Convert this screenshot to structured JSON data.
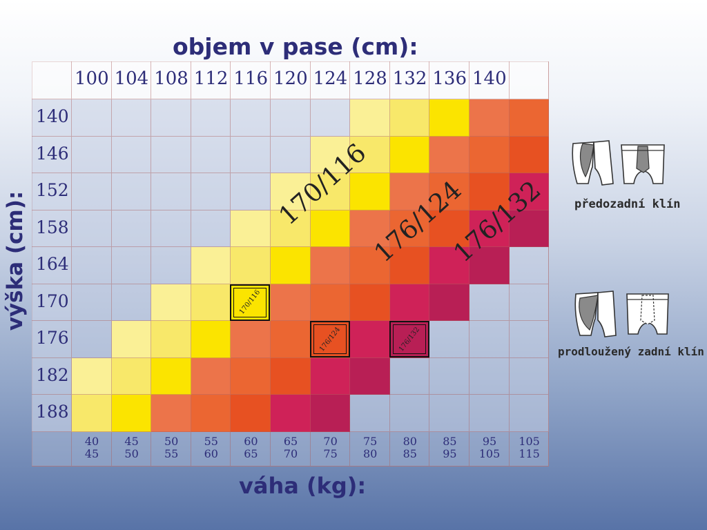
{
  "chart_data": {
    "type": "heatmap",
    "title_top": "objem v pase (cm):",
    "ylabel": "výška (cm):",
    "xlabel": "váha (kg):",
    "waist_cm": [
      "100",
      "104",
      "108",
      "112",
      "116",
      "120",
      "124",
      "128",
      "132",
      "136",
      "140"
    ],
    "height_cm": [
      "140",
      "146",
      "152",
      "158",
      "164",
      "170",
      "176",
      "182",
      "188"
    ],
    "weight_kg": [
      [
        "40",
        "45"
      ],
      [
        "45",
        "50"
      ],
      [
        "50",
        "55"
      ],
      [
        "55",
        "60"
      ],
      [
        "60",
        "65"
      ],
      [
        "65",
        "70"
      ],
      [
        "70",
        "75"
      ],
      [
        "75",
        "80"
      ],
      [
        "80",
        "85"
      ],
      [
        "85",
        "95"
      ],
      [
        "95",
        "105"
      ],
      [
        "105",
        "115"
      ]
    ],
    "color_scale": {
      "0": "#c6d0e4",
      "1": "#faf096",
      "2": "#f8e86a",
      "3": "#fbe400",
      "4": "#ec744a",
      "5": "#eb6632",
      "6": "#e75122",
      "7": "#cf2258",
      "8": "#b81f55"
    },
    "matrix": [
      [
        0,
        0,
        0,
        0,
        0,
        0,
        0,
        1,
        2,
        3,
        4,
        5
      ],
      [
        0,
        0,
        0,
        0,
        0,
        0,
        1,
        2,
        3,
        4,
        5,
        6
      ],
      [
        0,
        0,
        0,
        0,
        0,
        1,
        2,
        3,
        4,
        5,
        6,
        7
      ],
      [
        0,
        0,
        0,
        0,
        1,
        2,
        3,
        4,
        5,
        6,
        7,
        8
      ],
      [
        0,
        0,
        0,
        1,
        2,
        3,
        4,
        5,
        6,
        7,
        8,
        0
      ],
      [
        0,
        0,
        1,
        2,
        3,
        4,
        5,
        6,
        7,
        8,
        0,
        0
      ],
      [
        0,
        1,
        2,
        3,
        4,
        5,
        6,
        7,
        8,
        0,
        0,
        0
      ],
      [
        1,
        2,
        3,
        4,
        5,
        6,
        7,
        8,
        0,
        0,
        0,
        0
      ],
      [
        2,
        3,
        4,
        5,
        6,
        7,
        8,
        0,
        0,
        0,
        0,
        0
      ]
    ],
    "size_labels": [
      "170/116",
      "176/124",
      "176/132"
    ],
    "size_markers": [
      {
        "label": "170/116",
        "row": 5,
        "col": 5
      },
      {
        "label": "176/124",
        "row": 6,
        "col": 7
      },
      {
        "label": "176/132",
        "row": 6,
        "col": 9
      }
    ]
  },
  "legend": {
    "item1": "předozadní klín",
    "item2": "prodloužený zadní klín"
  }
}
